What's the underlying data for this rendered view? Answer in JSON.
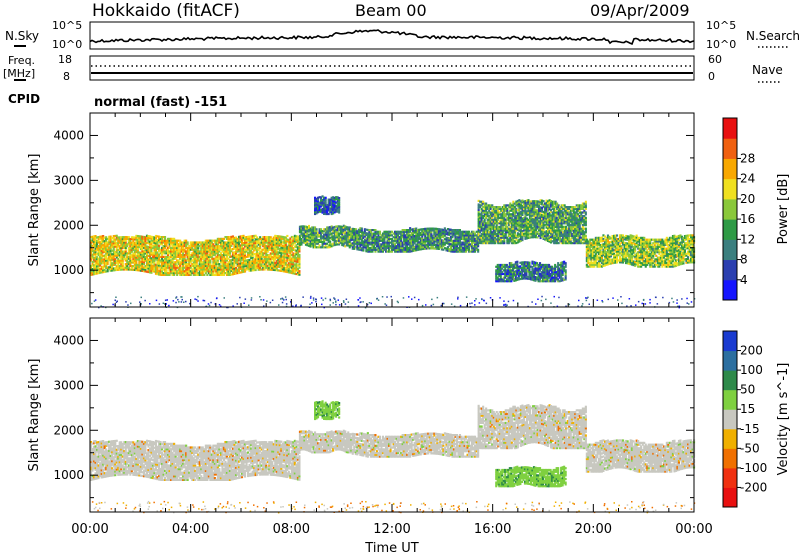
{
  "header": {
    "station": "Hokkaido (fitACF)",
    "beam": "Beam 00",
    "date": "09/Apr/2009"
  },
  "noise_panel": {
    "left_label": "N.Sky",
    "right_label": "N.Search",
    "left_ticks": [
      "10^5",
      "10^0"
    ],
    "right_ticks": [
      "10^5",
      "10^0"
    ]
  },
  "freq_panel": {
    "left_label_1": "Freq.",
    "left_label_2": "[MHz]",
    "right_label": "Nave",
    "left_ticks": [
      "18",
      "8"
    ],
    "right_ticks": [
      "60",
      "0"
    ],
    "cpid_label": "CPID",
    "cpid_text": "normal (fast) -151"
  },
  "chart_data": [
    {
      "type": "heatmap",
      "name": "power",
      "ylabel": "Slant Range [km]",
      "xlabel": "",
      "ylim": [
        180,
        4500
      ],
      "yticks": [
        1000,
        2000,
        3000,
        4000
      ],
      "colorbar": {
        "label": "Power [dB]",
        "ticks": [
          "4",
          "8",
          "12",
          "16",
          "20",
          "24",
          "28"
        ],
        "colors": [
          "#1515ff",
          "#2b3fb0",
          "#3b7f7f",
          "#2e9a45",
          "#8ac83a",
          "#f0e020",
          "#f8a800",
          "#f06010",
          "#e81010"
        ]
      },
      "echo_regions": [
        {
          "t_start": 0.0,
          "t_end": 8.3,
          "r_low": 800,
          "r_high": 1800,
          "level_db": 22
        },
        {
          "t_start": 8.3,
          "t_end": 10.4,
          "r_low": 1450,
          "r_high": 2000,
          "level_db": 14
        },
        {
          "t_start": 10.4,
          "t_end": 15.4,
          "r_low": 1350,
          "r_high": 1950,
          "level_db": 12
        },
        {
          "t_start": 15.4,
          "t_end": 19.7,
          "r_low": 1500,
          "r_high": 2600,
          "level_db": 14
        },
        {
          "t_start": 16.1,
          "t_end": 18.9,
          "r_low": 700,
          "r_high": 1200,
          "level_db": 10
        },
        {
          "t_start": 19.7,
          "t_end": 24.0,
          "r_low": 1000,
          "r_high": 1800,
          "level_db": 18
        },
        {
          "t_start": 8.9,
          "t_end": 9.9,
          "r_low": 2200,
          "r_high": 2650,
          "level_db": 8
        }
      ]
    },
    {
      "type": "heatmap",
      "name": "velocity",
      "ylabel": "Slant Range [km]",
      "xlabel": "Time UT",
      "ylim": [
        180,
        4500
      ],
      "yticks": [
        1000,
        2000,
        3000,
        4000
      ],
      "xticks": [
        "00:00",
        "04:00",
        "08:00",
        "12:00",
        "16:00",
        "20:00",
        "00:00"
      ],
      "colorbar": {
        "label": "Velocity [m s^-1]",
        "ticks": [
          "200",
          "100",
          "50",
          "15",
          "-15",
          "-50",
          "-100",
          "-200"
        ],
        "colors": [
          "#1a3bd0",
          "#2c6fa0",
          "#2e8a4a",
          "#7fd040",
          "#c8c8c0",
          "#f0b000",
          "#f07000",
          "#f03010",
          "#e81010"
        ]
      },
      "echo_regions": [
        {
          "t_start": 0.0,
          "t_end": 8.3,
          "r_low": 800,
          "r_high": 1800,
          "velocity": 0
        },
        {
          "t_start": 8.3,
          "t_end": 10.4,
          "r_low": 1450,
          "r_high": 2000,
          "velocity": 0
        },
        {
          "t_start": 10.4,
          "t_end": 15.4,
          "r_low": 1350,
          "r_high": 1950,
          "velocity": 0
        },
        {
          "t_start": 15.4,
          "t_end": 19.7,
          "r_low": 1500,
          "r_high": 2600,
          "velocity": 0
        },
        {
          "t_start": 16.1,
          "t_end": 18.9,
          "r_low": 700,
          "r_high": 1200,
          "velocity": 40
        },
        {
          "t_start": 19.7,
          "t_end": 24.0,
          "r_low": 1000,
          "r_high": 1800,
          "velocity": 0
        },
        {
          "t_start": 8.9,
          "t_end": 9.9,
          "r_low": 2200,
          "r_high": 2650,
          "velocity": 40
        }
      ]
    }
  ]
}
